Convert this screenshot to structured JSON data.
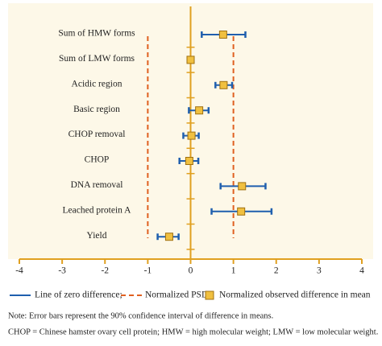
{
  "chart_data": {
    "type": "errorbar",
    "categories": [
      "Sum of HMW forms",
      "Sum of LMW forms",
      "Acidic region",
      "Basic region",
      "CHOP removal",
      "CHOP",
      "DNA removal",
      "Leached protein A",
      "Yield"
    ],
    "values": [
      0.76,
      0.0,
      0.77,
      0.2,
      0.02,
      -0.03,
      1.2,
      1.18,
      -0.5
    ],
    "lower": [
      0.26,
      -0.07,
      0.58,
      -0.04,
      -0.17,
      -0.26,
      0.7,
      0.49,
      -0.77
    ],
    "upper": [
      1.28,
      0.07,
      0.97,
      0.42,
      0.19,
      0.18,
      1.75,
      1.89,
      -0.28
    ],
    "xlim": [
      -4,
      4
    ],
    "xticks": [
      -4,
      -3,
      -2,
      -1,
      0,
      1,
      2,
      3,
      4
    ],
    "zero_line": 0,
    "psd_lines": [
      -1,
      1
    ],
    "bar_color": "#1f5fae",
    "marker_color": "#f0c040",
    "axis_color": "#e0a020",
    "psd_color": "#e06020",
    "legend": [
      "Line of zero difference;",
      "Normalized PSD;",
      "Normalized observed difference in mean"
    ],
    "notes": [
      "Note: Error bars represent the 90% confidence interval of difference in means.",
      "CHOP = Chinese hamster ovary cell protein; HMW = high molecular weight; LMW = low molecular weight."
    ]
  }
}
